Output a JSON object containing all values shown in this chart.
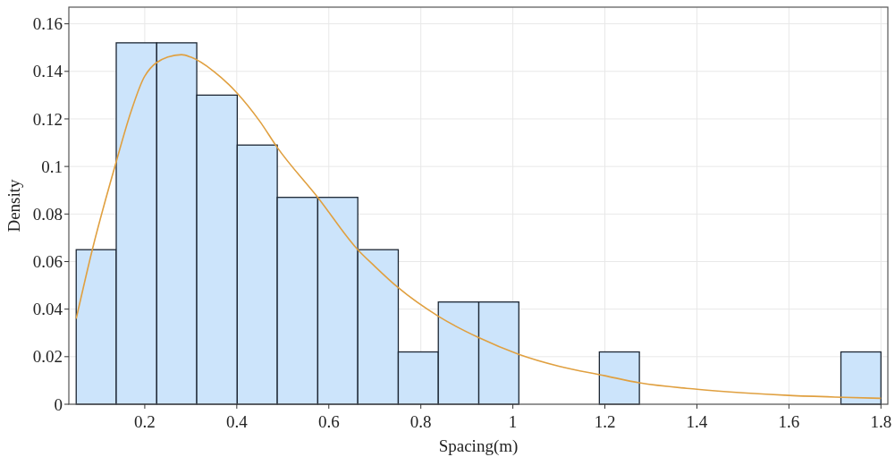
{
  "chart_data": {
    "type": "histogram",
    "xlabel": "Spacing(m)",
    "ylabel": "Density",
    "xlim": [
      0.035,
      1.815
    ],
    "ylim": [
      0,
      0.167
    ],
    "xticks": [
      0.2,
      0.4,
      0.6,
      0.8,
      1,
      1.2,
      1.4,
      1.6,
      1.8
    ],
    "yticks": [
      0,
      0.02,
      0.04,
      0.06,
      0.08,
      0.1,
      0.12,
      0.14,
      0.16
    ],
    "grid": true,
    "color": "#cce4fb",
    "bins": [
      0.051,
      0.138,
      0.226,
      0.313,
      0.401,
      0.488,
      0.576,
      0.663,
      0.751,
      0.838,
      0.926,
      1.013,
      1.188,
      1.275,
      1.713,
      1.8
    ],
    "values": [
      0.065,
      0.152,
      0.152,
      0.13,
      0.109,
      0.087,
      0.087,
      0.065,
      0.022,
      0.043,
      0.043,
      0,
      0.022,
      0,
      0.022
    ],
    "series": [
      {
        "type": "line",
        "color": "#e0a040",
        "x": [
          0.051,
          0.086,
          0.138,
          0.17,
          0.2,
          0.25,
          0.28,
          0.3,
          0.35,
          0.4,
          0.45,
          0.488,
          0.576,
          0.663,
          0.7,
          0.751,
          0.838,
          0.926,
          1.013,
          1.1,
          1.2,
          1.275,
          1.4,
          1.5,
          1.6,
          1.7,
          1.8
        ],
        "values": [
          0.036,
          0.065,
          0.102,
          0.123,
          0.138,
          0.146,
          0.147,
          0.146,
          0.14,
          0.131,
          0.119,
          0.108,
          0.087,
          0.065,
          0.058,
          0.049,
          0.037,
          0.028,
          0.021,
          0.016,
          0.012,
          0.009,
          0.0063,
          0.0048,
          0.0037,
          0.003,
          0.0025
        ]
      }
    ]
  }
}
